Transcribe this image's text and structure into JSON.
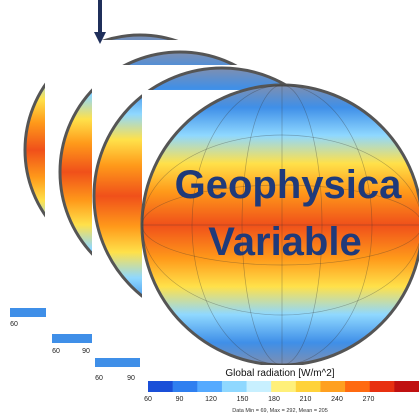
{
  "title_lines": [
    "Geophysica",
    "Variable"
  ],
  "colorbar": {
    "label": "Global radiation [W/m^2]",
    "ticks": [
      "60",
      "90",
      "120",
      "150",
      "180",
      "210",
      "240",
      "270"
    ],
    "stats": "Data Min = 69, Max = 292, Mean = 205"
  },
  "back_colorbars": [
    {
      "ticks": [
        "60"
      ]
    },
    {
      "ticks": [
        "60",
        "90"
      ]
    },
    {
      "ticks": [
        "60",
        "90"
      ]
    }
  ]
}
